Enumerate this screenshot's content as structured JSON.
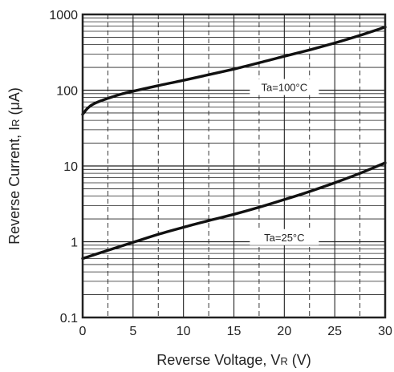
{
  "chart_data": {
    "type": "line",
    "xlabel": "Reverse Voltage, V",
    "xlabel_sub": "R",
    "xlabel_unit": " (V)",
    "ylabel": "Reverse Current, I",
    "ylabel_sub": "R",
    "ylabel_unit": " (μA)",
    "x_ticks": [
      "0",
      "5",
      "10",
      "15",
      "20",
      "25",
      "30"
    ],
    "y_ticks": [
      "0.1",
      "1",
      "10",
      "100",
      "1000"
    ],
    "xlim": [
      0,
      30
    ],
    "ylim": [
      0.1,
      1000
    ],
    "y_scale": "log",
    "grid": true,
    "series": [
      {
        "name": "Ta=100°C",
        "x": [
          0,
          0.5,
          1,
          2,
          3,
          4,
          5,
          7.5,
          10,
          12.5,
          15,
          17.5,
          20,
          22.5,
          25,
          27.5,
          30
        ],
        "y": [
          48,
          58,
          65,
          74,
          82,
          90,
          97,
          115,
          135,
          160,
          190,
          230,
          280,
          340,
          420,
          530,
          680
        ]
      },
      {
        "name": "Ta=25°C",
        "x": [
          0,
          2.5,
          5,
          7.5,
          10,
          12.5,
          15,
          17.5,
          20,
          22.5,
          25,
          27.5,
          30
        ],
        "y": [
          0.6,
          0.77,
          0.98,
          1.25,
          1.55,
          1.9,
          2.3,
          2.85,
          3.6,
          4.6,
          6.0,
          8.0,
          11
        ]
      }
    ]
  }
}
